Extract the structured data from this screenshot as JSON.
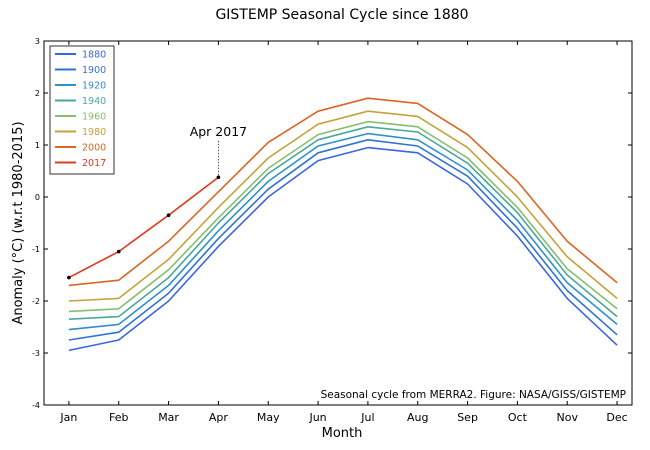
{
  "chart_data": {
    "type": "line",
    "title": "GISTEMP Seasonal Cycle since 1880",
    "xlabel": "Month",
    "ylabel": "Anomaly (°C) (w.r.t 1980-2015)",
    "categories": [
      "Jan",
      "Feb",
      "Mar",
      "Apr",
      "May",
      "Jun",
      "Jul",
      "Aug",
      "Sep",
      "Oct",
      "Nov",
      "Dec"
    ],
    "xlim": [
      0.5,
      12.3
    ],
    "ylim": [
      -4,
      3
    ],
    "yticks": [
      "-4",
      "-3",
      "-2",
      "-1",
      "0",
      "1",
      "2",
      "3"
    ],
    "legend_position": "top-left",
    "legend": [
      {
        "label": "1880",
        "color": "#3a66e0"
      },
      {
        "label": "1900",
        "color": "#2f73d6"
      },
      {
        "label": "1920",
        "color": "#2f8fcf"
      },
      {
        "label": "1940",
        "color": "#4aa89a"
      },
      {
        "label": "1960",
        "color": "#86be6e"
      },
      {
        "label": "1980",
        "color": "#c4a338"
      },
      {
        "label": "2000",
        "color": "#dd6522"
      },
      {
        "label": "2017",
        "color": "#e03a1e"
      }
    ],
    "series": [
      {
        "name": "1880",
        "color": "#3a66e0",
        "values": [
          -2.95,
          -2.75,
          -2.0,
          -0.95,
          0.0,
          0.7,
          0.95,
          0.85,
          0.25,
          -0.75,
          -1.95,
          -2.85
        ]
      },
      {
        "name": "1900",
        "color": "#2f73d6",
        "values": [
          -2.75,
          -2.6,
          -1.85,
          -0.8,
          0.15,
          0.85,
          1.1,
          0.98,
          0.4,
          -0.6,
          -1.8,
          -2.65
        ]
      },
      {
        "name": "1920",
        "color": "#2f8fcf",
        "values": [
          -2.55,
          -2.45,
          -1.7,
          -0.65,
          0.3,
          0.98,
          1.22,
          1.1,
          0.52,
          -0.45,
          -1.65,
          -2.45
        ]
      },
      {
        "name": "1940",
        "color": "#4aa89a",
        "values": [
          -2.35,
          -2.3,
          -1.55,
          -0.5,
          0.45,
          1.1,
          1.35,
          1.25,
          0.65,
          -0.3,
          -1.5,
          -2.3
        ]
      },
      {
        "name": "1960",
        "color": "#86be6e",
        "values": [
          -2.2,
          -2.15,
          -1.4,
          -0.4,
          0.55,
          1.2,
          1.45,
          1.35,
          0.75,
          -0.2,
          -1.38,
          -2.15
        ]
      },
      {
        "name": "1980",
        "color": "#c4a338",
        "values": [
          -2.0,
          -1.95,
          -1.2,
          -0.2,
          0.75,
          1.4,
          1.65,
          1.55,
          0.95,
          0.0,
          -1.15,
          -1.95
        ]
      },
      {
        "name": "2000",
        "color": "#dd6522",
        "values": [
          -1.7,
          -1.6,
          -0.85,
          0.1,
          1.05,
          1.65,
          1.9,
          1.8,
          1.2,
          0.3,
          -0.85,
          -1.65
        ]
      },
      {
        "name": "2017",
        "color": "#e03a1e",
        "values": [
          -1.55,
          -1.05,
          -0.35,
          0.38,
          null,
          null,
          null,
          null,
          null,
          null,
          null,
          null
        ]
      }
    ],
    "annotations": [
      {
        "text": "Apr 2017",
        "x": "Apr",
        "y": 0.38
      },
      {
        "text": "Seasonal cycle from MERRA2. Figure: NASA/GISS/GISTEMP"
      }
    ]
  }
}
